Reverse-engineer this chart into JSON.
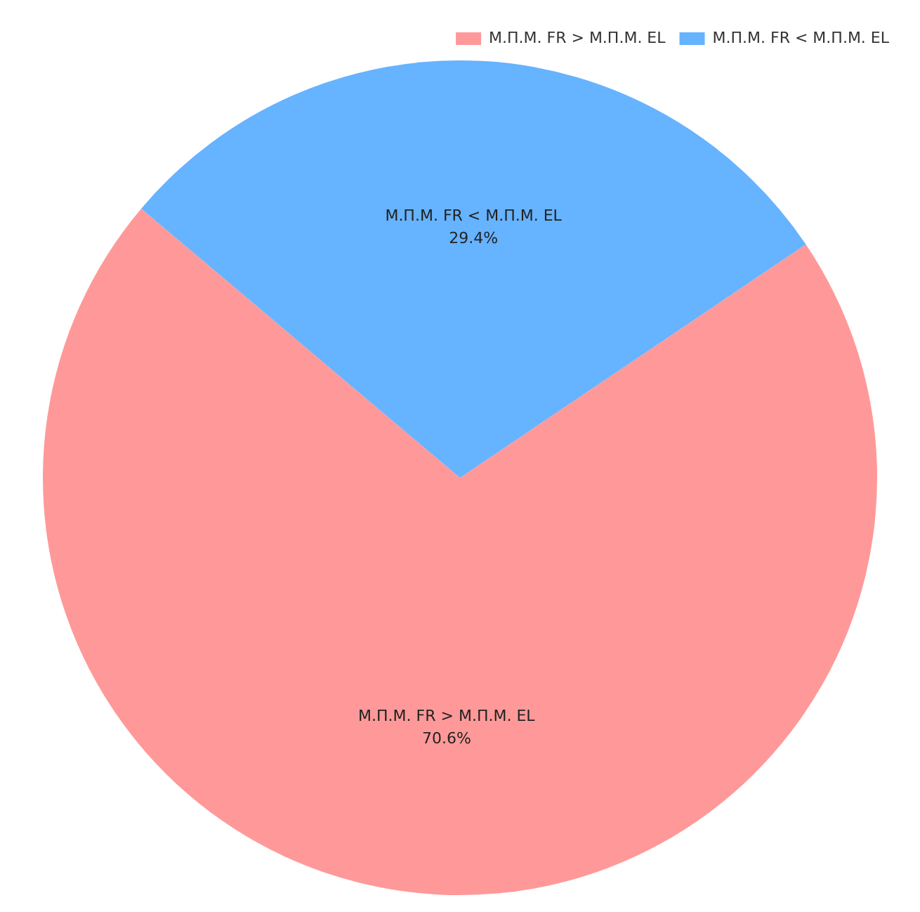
{
  "chart_data": {
    "type": "pie",
    "categories": [
      "Μ.Π.Μ. FR > Μ.Π.Μ. EL",
      "Μ.Π.Μ. FR < Μ.Π.Μ. EL"
    ],
    "values": [
      70.6,
      29.4
    ],
    "colors": [
      "#ff9999",
      "#66b3ff"
    ],
    "value_labels": [
      "70.6%",
      "29.4%"
    ],
    "legend": "top right"
  }
}
